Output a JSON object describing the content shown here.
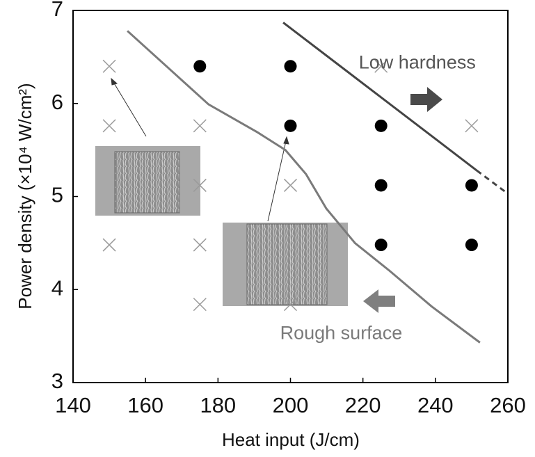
{
  "chart_data": {
    "type": "scatter",
    "x_label": "Heat input (J/cm)",
    "y_label": "Power density (×10⁴ W/cm²)",
    "xlim": [
      140,
      260
    ],
    "xticks": [
      140,
      160,
      180,
      200,
      220,
      240,
      260
    ],
    "ylim": [
      3,
      7
    ],
    "yticks": [
      3,
      4,
      5,
      6,
      7
    ],
    "series": [
      {
        "marker": "x",
        "color": "#9a9a9a",
        "x": [
          150,
          150,
          150,
          175,
          175,
          175,
          175,
          200,
          200,
          225,
          250
        ],
        "y": [
          6.4,
          5.76,
          4.48,
          5.76,
          5.12,
          4.48,
          3.84,
          5.12,
          3.84,
          6.4,
          5.76
        ]
      },
      {
        "marker": "o",
        "color": "#000000",
        "x": [
          175,
          200,
          200,
          225,
          225,
          225,
          250,
          250
        ],
        "y": [
          6.4,
          6.4,
          5.76,
          5.76,
          5.12,
          4.48,
          5.12,
          4.48
        ]
      }
    ],
    "lines": [
      {
        "color": "#7a7a7a",
        "dash": false,
        "x": [
          155,
          177.4,
          190.9,
          198.6,
          204.3,
          209.9,
          217.8,
          227.4,
          238.9,
          252.3
        ],
        "y": [
          6.78,
          5.99,
          5.69,
          5.5,
          5.24,
          4.87,
          4.5,
          4.2,
          3.82,
          3.43
        ]
      },
      {
        "color": "#444444",
        "dash": false,
        "x": [
          198,
          251.4
        ],
        "y": [
          6.87,
          5.28
        ]
      },
      {
        "color": "#444444",
        "dash": true,
        "x": [
          251.4,
          260
        ],
        "y": [
          5.28,
          5.03
        ]
      }
    ],
    "annotations": [
      {
        "text": "Low hardness",
        "x": 235,
        "y": 6.43,
        "color": "#555555"
      },
      {
        "text": "Rough surface",
        "x": 214,
        "y": 3.52,
        "color": "#7a7a7a"
      }
    ]
  }
}
